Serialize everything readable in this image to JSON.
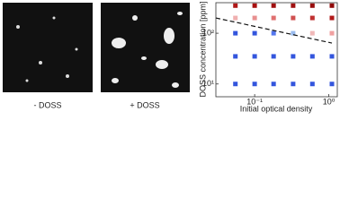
{
  "panels": [
    {
      "label": "- DOSS"
    },
    {
      "label": "+ DOSS"
    }
  ],
  "chart_data": {
    "type": "scatter",
    "xlabel": "Initial optical density",
    "ylabel": "DOSS concentration [ppm]",
    "xlog": true,
    "ylog": true,
    "xlim": [
      0.03,
      1.3
    ],
    "ylim": [
      5.6,
      400
    ],
    "xticks": [
      {
        "value": 0.1,
        "label": "10⁻¹"
      },
      {
        "value": 1,
        "label": "10⁰"
      }
    ],
    "yticks": [
      {
        "value": 10,
        "label": "10¹"
      },
      {
        "value": 100,
        "label": "10²"
      }
    ],
    "x": [
      0.055,
      0.1,
      0.18,
      0.33,
      0.6,
      1.1,
      0.055,
      0.1,
      0.18,
      0.33,
      0.6,
      1.1,
      0.055,
      0.1,
      0.18,
      0.33,
      0.6,
      1.1,
      0.055,
      0.1,
      0.18,
      0.33,
      0.6,
      1.1,
      0.055,
      0.1,
      0.18,
      0.33,
      0.6,
      1.1
    ],
    "y": [
      350,
      350,
      350,
      350,
      350,
      350,
      200,
      200,
      200,
      200,
      200,
      200,
      100,
      100,
      100,
      100,
      100,
      100,
      35,
      35,
      35,
      35,
      35,
      35,
      10,
      10,
      10,
      10,
      10,
      10
    ],
    "colors": [
      "#b01818",
      "#a81010",
      "#a01010",
      "#a01010",
      "#980c0c",
      "#900808",
      "#f0b0b0",
      "#e89090",
      "#e07070",
      "#d05050",
      "#c03030",
      "#b01818",
      "#3355dd",
      "#3355dd",
      "#5577ee",
      "#99bbee",
      "#f0b8b8",
      "#f0a0a0",
      "#3355dd",
      "#3355dd",
      "#3355dd",
      "#3355dd",
      "#3355dd",
      "#3355dd",
      "#3355dd",
      "#3355dd",
      "#3355dd",
      "#3355dd",
      "#3355dd",
      "#3355dd"
    ],
    "fit_line": {
      "x": [
        0.03,
        1.1
      ],
      "y": [
        200,
        64
      ]
    }
  }
}
